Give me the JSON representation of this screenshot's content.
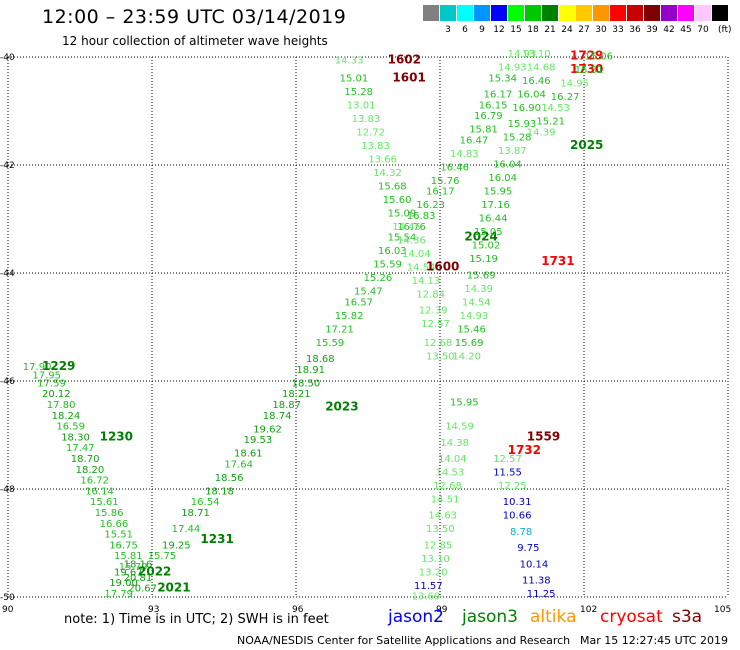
{
  "header": {
    "title": "12:00 – 23:59 UTC 03/14/2019",
    "subtitle": "12 hour collection of altimeter wave heights"
  },
  "scale": {
    "unit": "(ft)",
    "bins": [
      {
        "label": "",
        "color": "#808080"
      },
      {
        "label": "3",
        "color": "#00c8c8"
      },
      {
        "label": "6",
        "color": "#00ffff"
      },
      {
        "label": "9",
        "color": "#0096ff"
      },
      {
        "label": "12",
        "color": "#0000ff"
      },
      {
        "label": "15",
        "color": "#00ff00"
      },
      {
        "label": "18",
        "color": "#00c800"
      },
      {
        "label": "21",
        "color": "#008000"
      },
      {
        "label": "24",
        "color": "#ffff00"
      },
      {
        "label": "27",
        "color": "#ffc800"
      },
      {
        "label": "30",
        "color": "#ff9600"
      },
      {
        "label": "33",
        "color": "#ff0000"
      },
      {
        "label": "36",
        "color": "#c80000"
      },
      {
        "label": "39",
        "color": "#800000"
      },
      {
        "label": "42",
        "color": "#9600c8"
      },
      {
        "label": "45",
        "color": "#ff00ff"
      },
      {
        "label": "70",
        "color": "#ffc8ff"
      },
      {
        "label": "",
        "color": "#000000"
      }
    ]
  },
  "map": {
    "lon_range": [
      90,
      105
    ],
    "lat_range": [
      -50,
      -40
    ],
    "x_ticks": [
      "90",
      "93",
      "96",
      "99",
      "102",
      "105"
    ],
    "y_ticks": [
      "-40",
      "-42",
      "-44",
      "-46",
      "-48",
      "-50"
    ],
    "grid": "dotted",
    "tracks": [
      {
        "points": [
          {
            "lon": 90.6,
            "lat": -45.8,
            "val": "17.90"
          },
          {
            "lon": 90.8,
            "lat": -45.95,
            "val": "17.95"
          },
          {
            "lon": 90.9,
            "lat": -46.1,
            "val": "17.59"
          },
          {
            "lon": 91.0,
            "lat": -46.3,
            "val": "20.12"
          },
          {
            "lon": 91.1,
            "lat": -46.5,
            "val": "17.80"
          },
          {
            "lon": 91.2,
            "lat": -46.7,
            "val": "18.24"
          },
          {
            "lon": 91.3,
            "lat": -46.9,
            "val": "16.59"
          },
          {
            "lon": 91.4,
            "lat": -47.1,
            "val": "18.30"
          },
          {
            "lon": 91.5,
            "lat": -47.3,
            "val": "17.47"
          },
          {
            "lon": 91.6,
            "lat": -47.5,
            "val": "18.70"
          },
          {
            "lon": 91.7,
            "lat": -47.7,
            "val": "18.20"
          },
          {
            "lon": 91.8,
            "lat": -47.9,
            "val": "16.72"
          },
          {
            "lon": 91.9,
            "lat": -48.1,
            "val": "16.14"
          },
          {
            "lon": 92.0,
            "lat": -48.3,
            "val": "15.61"
          },
          {
            "lon": 92.1,
            "lat": -48.5,
            "val": "15.86"
          },
          {
            "lon": 92.2,
            "lat": -48.7,
            "val": "16.66"
          },
          {
            "lon": 92.3,
            "lat": -48.9,
            "val": "15.51"
          },
          {
            "lon": 92.4,
            "lat": -49.1,
            "val": "16.75"
          },
          {
            "lon": 92.5,
            "lat": -49.3,
            "val": "15.81"
          },
          {
            "lon": 92.6,
            "lat": -49.5,
            "val": "15.79"
          },
          {
            "lon": 92.7,
            "lat": -49.7,
            "val": "20.81"
          },
          {
            "lon": 92.8,
            "lat": -49.9,
            "val": "20.67"
          }
        ],
        "time": {
          "lon": 91.0,
          "lat": -45.8,
          "text": "1229"
        },
        "time2": {
          "lon": 92.2,
          "lat": -47.1,
          "text": "1230"
        }
      },
      {
        "points": [
          {
            "lon": 92.7,
            "lat": -49.45,
            "val": "18.16"
          },
          {
            "lon": 92.5,
            "lat": -49.6,
            "val": "19.67"
          },
          {
            "lon": 92.4,
            "lat": -49.8,
            "val": "19.00"
          },
          {
            "lon": 92.3,
            "lat": -50.0,
            "val": "17.79"
          }
        ],
        "time": {
          "lon": 93.4,
          "lat": -49.9,
          "text": "2021"
        }
      },
      {
        "points": [
          {
            "lon": 93.2,
            "lat": -49.3,
            "val": "15.75"
          },
          {
            "lon": 93.5,
            "lat": -49.1,
            "val": "19.25"
          },
          {
            "lon": 93.7,
            "lat": -48.8,
            "val": "17.44"
          },
          {
            "lon": 93.9,
            "lat": -48.5,
            "val": "18.71"
          },
          {
            "lon": 94.1,
            "lat": -48.3,
            "val": "16.54"
          },
          {
            "lon": 94.4,
            "lat": -48.1,
            "val": "18.18"
          },
          {
            "lon": 94.6,
            "lat": -47.85,
            "val": "18.56"
          },
          {
            "lon": 94.8,
            "lat": -47.6,
            "val": "17.64"
          },
          {
            "lon": 95.0,
            "lat": -47.4,
            "val": "18.61"
          },
          {
            "lon": 95.2,
            "lat": -47.15,
            "val": "19.53"
          },
          {
            "lon": 95.4,
            "lat": -46.95,
            "val": "19.62"
          },
          {
            "lon": 95.6,
            "lat": -46.7,
            "val": "18.74"
          },
          {
            "lon": 95.8,
            "lat": -46.5,
            "val": "18.87"
          },
          {
            "lon": 96.0,
            "lat": -46.3,
            "val": "18.21"
          },
          {
            "lon": 96.2,
            "lat": -46.1,
            "val": "18.50"
          },
          {
            "lon": 96.3,
            "lat": -45.85,
            "val": "18.91"
          },
          {
            "lon": 96.5,
            "lat": -45.65,
            "val": "18.68"
          },
          {
            "lon": 96.7,
            "lat": -45.35,
            "val": "15.59"
          },
          {
            "lon": 96.9,
            "lat": -45.1,
            "val": "17.21"
          },
          {
            "lon": 97.1,
            "lat": -44.85,
            "val": "15.82"
          },
          {
            "lon": 97.3,
            "lat": -44.6,
            "val": "16.57"
          },
          {
            "lon": 97.5,
            "lat": -44.4,
            "val": "15.47"
          },
          {
            "lon": 97.7,
            "lat": -44.15,
            "val": "15.26"
          },
          {
            "lon": 97.9,
            "lat": -43.9,
            "val": "15.59"
          },
          {
            "lon": 98.0,
            "lat": -43.65,
            "val": "16.03"
          },
          {
            "lon": 98.2,
            "lat": -43.4,
            "val": "15.54"
          },
          {
            "lon": 98.4,
            "lat": -43.2,
            "val": "16.76"
          }
        ],
        "time": {
          "lon": 93.0,
          "lat": -49.6,
          "text": "2022"
        },
        "time2": {
          "lon": 96.9,
          "lat": -46.55,
          "text": "2023"
        }
      },
      {
        "points": [
          {
            "lon": 98.6,
            "lat": -43.0,
            "val": "16.83"
          },
          {
            "lon": 98.8,
            "lat": -42.8,
            "val": "16.23"
          },
          {
            "lon": 99.0,
            "lat": -42.55,
            "val": "16.17"
          },
          {
            "lon": 99.1,
            "lat": -42.35,
            "val": "15.76"
          },
          {
            "lon": 99.3,
            "lat": -42.1,
            "val": "16.46"
          },
          {
            "lon": 99.5,
            "lat": -41.85,
            "val": "14.83"
          },
          {
            "lon": 99.7,
            "lat": -41.6,
            "val": "16.47"
          },
          {
            "lon": 99.9,
            "lat": -41.4,
            "val": "15.81"
          },
          {
            "lon": 100.0,
            "lat": -41.15,
            "val": "16.79"
          },
          {
            "lon": 100.1,
            "lat": -40.95,
            "val": "16.15"
          },
          {
            "lon": 100.2,
            "lat": -40.75,
            "val": "16.17"
          },
          {
            "lon": 100.3,
            "lat": -40.45,
            "val": "15.34"
          },
          {
            "lon": 100.5,
            "lat": -40.25,
            "val": "14.93"
          },
          {
            "lon": 100.7,
            "lat": -40.0,
            "val": "14.93"
          }
        ],
        "time": {
          "lon": 99.8,
          "lat": -43.4,
          "text": "2024"
        },
        "time2": {
          "lon": 102.0,
          "lat": -41.7,
          "text": "2025"
        }
      },
      {
        "points": [
          {
            "lon": 97.1,
            "lat": -40.12,
            "val": "14.33"
          },
          {
            "lon": 97.2,
            "lat": -40.45,
            "val": "15.01"
          },
          {
            "lon": 97.3,
            "lat": -40.7,
            "val": "15.28"
          },
          {
            "lon": 97.35,
            "lat": -40.95,
            "val": "13.01"
          },
          {
            "lon": 97.45,
            "lat": -41.2,
            "val": "13.83"
          },
          {
            "lon": 97.55,
            "lat": -41.45,
            "val": "12.72"
          },
          {
            "lon": 97.65,
            "lat": -41.7,
            "val": "13.83"
          },
          {
            "lon": 97.8,
            "lat": -41.95,
            "val": "13.66"
          },
          {
            "lon": 97.9,
            "lat": -42.2,
            "val": "14.32"
          },
          {
            "lon": 98.0,
            "lat": -42.45,
            "val": "15.68"
          },
          {
            "lon": 98.1,
            "lat": -42.7,
            "val": "15.60"
          },
          {
            "lon": 98.2,
            "lat": -42.95,
            "val": "15.09"
          },
          {
            "lon": 98.3,
            "lat": -43.2,
            "val": "14.45"
          },
          {
            "lon": 98.4,
            "lat": -43.45,
            "val": "14.36"
          },
          {
            "lon": 98.5,
            "lat": -43.7,
            "val": "14.04"
          },
          {
            "lon": 98.6,
            "lat": -43.95,
            "val": "14.54"
          },
          {
            "lon": 98.7,
            "lat": -44.2,
            "val": "14.13"
          },
          {
            "lon": 98.8,
            "lat": -44.45,
            "val": "12.84"
          },
          {
            "lon": 98.85,
            "lat": -44.75,
            "val": "12.39"
          },
          {
            "lon": 98.9,
            "lat": -45.0,
            "val": "12.57"
          },
          {
            "lon": 98.95,
            "lat": -45.35,
            "val": "12.68"
          },
          {
            "lon": 99.0,
            "lat": -45.6,
            "val": "13.50"
          }
        ],
        "time": {
          "lon": 98.2,
          "lat": -40.12,
          "text": "1602"
        },
        "time2": {
          "lon": 98.3,
          "lat": -40.45,
          "text": "1601"
        }
      },
      {
        "points": [
          {
            "lon": 101.0,
            "lat": -40.0,
            "val": "13.10"
          },
          {
            "lon": 101.1,
            "lat": -40.25,
            "val": "14.68"
          },
          {
            "lon": 101.0,
            "lat": -40.5,
            "val": "16.46"
          },
          {
            "lon": 100.9,
            "lat": -40.75,
            "val": "16.04"
          },
          {
            "lon": 100.8,
            "lat": -41.0,
            "val": "16.90"
          },
          {
            "lon": 100.7,
            "lat": -41.3,
            "val": "15.93"
          },
          {
            "lon": 100.6,
            "lat": -41.55,
            "val": "15.28"
          },
          {
            "lon": 100.5,
            "lat": -41.8,
            "val": "13.87"
          },
          {
            "lon": 100.4,
            "lat": -42.05,
            "val": "16.04"
          },
          {
            "lon": 100.3,
            "lat": -42.3,
            "val": "16.04"
          },
          {
            "lon": 100.2,
            "lat": -42.55,
            "val": "15.95"
          },
          {
            "lon": 100.15,
            "lat": -42.8,
            "val": "17.16"
          },
          {
            "lon": 100.1,
            "lat": -43.05,
            "val": "16.44"
          },
          {
            "lon": 100.0,
            "lat": -43.3,
            "val": "15.05"
          },
          {
            "lon": 99.95,
            "lat": -43.55,
            "val": "15.02"
          },
          {
            "lon": 99.9,
            "lat": -43.8,
            "val": "15.19"
          },
          {
            "lon": 99.85,
            "lat": -44.1,
            "val": "15.69"
          },
          {
            "lon": 99.8,
            "lat": -44.35,
            "val": "14.39"
          },
          {
            "lon": 99.75,
            "lat": -44.6,
            "val": "14.54"
          },
          {
            "lon": 99.7,
            "lat": -44.85,
            "val": "14.93"
          },
          {
            "lon": 99.65,
            "lat": -45.1,
            "val": "15.46"
          },
          {
            "lon": 99.6,
            "lat": -45.35,
            "val": "15.69"
          },
          {
            "lon": 99.55,
            "lat": -45.6,
            "val": "14.20"
          },
          {
            "lon": 99.5,
            "lat": -46.45,
            "val": "15.95"
          },
          {
            "lon": 99.4,
            "lat": -46.9,
            "val": "14.59"
          },
          {
            "lon": 99.3,
            "lat": -47.2,
            "val": "14.38"
          },
          {
            "lon": 99.25,
            "lat": -47.5,
            "val": "14.04"
          },
          {
            "lon": 99.2,
            "lat": -47.75,
            "val": "14.53"
          },
          {
            "lon": 99.15,
            "lat": -48.0,
            "val": "12.68"
          },
          {
            "lon": 99.1,
            "lat": -48.25,
            "val": "14.51"
          },
          {
            "lon": 99.05,
            "lat": -48.55,
            "val": "14.63"
          },
          {
            "lon": 99.0,
            "lat": -48.8,
            "val": "13.50"
          },
          {
            "lon": 98.95,
            "lat": -49.1,
            "val": "12.85"
          },
          {
            "lon": 98.9,
            "lat": -49.35,
            "val": "13.10"
          },
          {
            "lon": 98.85,
            "lat": -49.6,
            "val": "13.20"
          },
          {
            "lon": 98.75,
            "lat": -49.85,
            "val": "11.57"
          },
          {
            "lon": 98.7,
            "lat": -50.05,
            "val": "13.69"
          }
        ],
        "time": {
          "lon": 102.0,
          "lat": -40.05,
          "text": "1729"
        },
        "time2": {
          "lon": 102.0,
          "lat": -40.3,
          "text": "1730"
        }
      },
      {
        "points": [
          {
            "lon": 102.3,
            "lat": -40.05,
            "val": "15.06"
          },
          {
            "lon": 102.1,
            "lat": -40.3,
            "val": "15.31"
          },
          {
            "lon": 101.8,
            "lat": -40.55,
            "val": "14.95"
          },
          {
            "lon": 101.6,
            "lat": -40.8,
            "val": "16.27"
          },
          {
            "lon": 101.4,
            "lat": -41.0,
            "val": "14.53"
          },
          {
            "lon": 101.3,
            "lat": -41.25,
            "val": "15.21"
          },
          {
            "lon": 101.1,
            "lat": -41.45,
            "val": "14.39"
          }
        ],
        "time": null
      },
      {
        "points": [
          {
            "lon": 100.4,
            "lat": -47.5,
            "val": "12.57"
          },
          {
            "lon": 100.4,
            "lat": -47.75,
            "val": "11.55"
          },
          {
            "lon": 100.5,
            "lat": -48.0,
            "val": "12.25"
          },
          {
            "lon": 100.6,
            "lat": -48.3,
            "val": "10.31"
          },
          {
            "lon": 100.6,
            "lat": -48.55,
            "val": "10.66"
          },
          {
            "lon": 100.75,
            "lat": -48.85,
            "val": "8.78"
          },
          {
            "lon": 100.9,
            "lat": -49.15,
            "val": "9.75"
          },
          {
            "lon": 100.95,
            "lat": -49.45,
            "val": "10.14"
          },
          {
            "lon": 101.0,
            "lat": -49.75,
            "val": "11.38"
          },
          {
            "lon": 101.1,
            "lat": -50.0,
            "val": "11.25"
          }
        ],
        "time": {
          "lon": 101.1,
          "lat": -47.1,
          "text": "1559"
        },
        "time2": {
          "lon": 100.7,
          "lat": -47.35,
          "text": "1732"
        }
      }
    ],
    "extra_times": [
      {
        "lon": 99.0,
        "lat": -43.95,
        "text": "1600",
        "color": "#800000"
      },
      {
        "lon": 101.4,
        "lat": -43.85,
        "text": "1731",
        "color": "#ff0000"
      },
      {
        "lon": 94.3,
        "lat": -49.0,
        "text": "1231",
        "color": "#008000"
      }
    ]
  },
  "footer": {
    "note": "note: 1) Time is in UTC; 2) SWH is in feet",
    "satellites": [
      {
        "name": "jason2",
        "color": "#0000ff"
      },
      {
        "name": "jason3",
        "color": "#008000"
      },
      {
        "name": "altika",
        "color": "#ff9600"
      },
      {
        "name": "cryosat",
        "color": "#ff0000"
      },
      {
        "name": "s3a",
        "color": "#800000"
      }
    ],
    "credit": "NOAA/NESDIS Center for Satellite Applications and Research",
    "timestamp": "Mar 15 12:27:45 UTC 2019"
  }
}
